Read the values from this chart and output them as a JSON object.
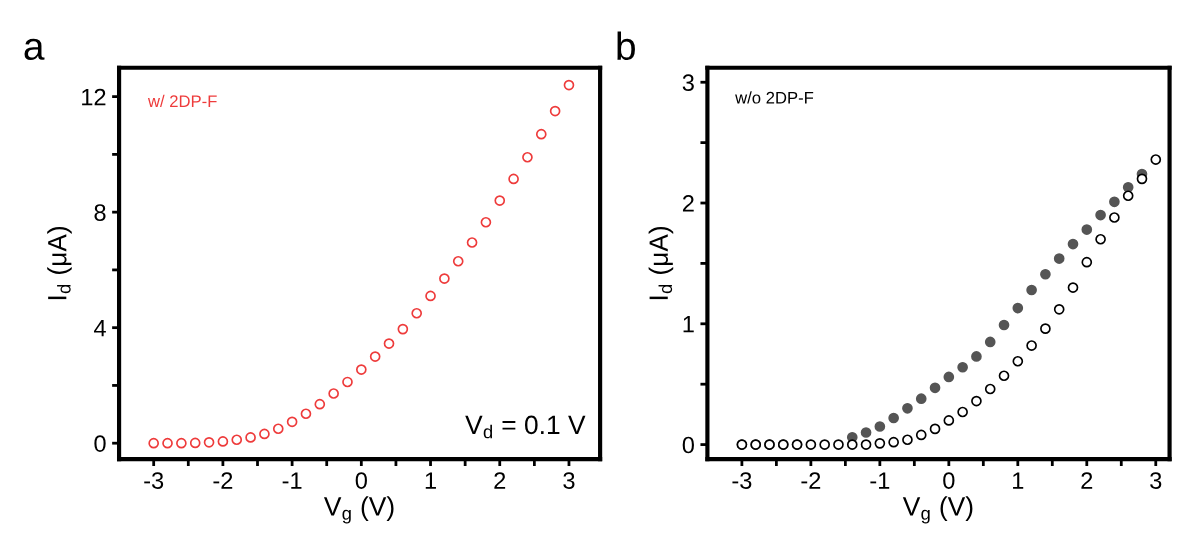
{
  "chart_data": [
    {
      "type": "scatter",
      "xlabel": "V$_{g}$ (V)",
      "ylabel": "I$_{d}$ (μA)",
      "annotations": [
        "a",
        "V$_{d}$ = 0.1 V"
      ],
      "marker": "circle",
      "grid": false,
      "legend": false,
      "xlim": [
        -3.5,
        3.45
      ],
      "ylim": [
        -0.55,
        13.0
      ],
      "xticks": [
        -3,
        {
          "value": -2.5,
          "label": null
        },
        -2,
        {
          "value": -1.5,
          "label": null
        },
        -1,
        {
          "value": -0.5,
          "label": null
        },
        0,
        {
          "value": 0.5,
          "label": null
        },
        1,
        {
          "value": 1.5,
          "label": null
        },
        2,
        {
          "value": 2.5,
          "label": null
        },
        3
      ],
      "yticks": [
        0,
        {
          "value": 2,
          "label": null
        },
        4,
        {
          "value": 6,
          "label": null
        },
        8,
        {
          "value": 10,
          "label": null
        },
        12
      ],
      "series": [
        {
          "name": "w/ 2DP-F",
          "color": "#ee3b3b",
          "x": [
            -3,
            -2.8,
            -2.6,
            -2.4,
            -2.2,
            -2.0,
            -1.8,
            -1.6,
            -1.4,
            -1.2,
            -1.0,
            -0.8,
            -0.6,
            -0.4,
            -0.2,
            0,
            0.2,
            0.4,
            0.6,
            0.8,
            1.0,
            1.2,
            1.4,
            1.6,
            1.8,
            2.0,
            2.2,
            2.4,
            2.6,
            2.8,
            3.0
          ],
          "values": [
            0,
            0,
            0,
            0.01,
            0.03,
            0.06,
            0.12,
            0.2,
            0.32,
            0.5,
            0.74,
            1.02,
            1.35,
            1.72,
            2.12,
            2.55,
            3.0,
            3.45,
            3.95,
            4.5,
            5.1,
            5.7,
            6.3,
            6.95,
            7.65,
            8.4,
            9.15,
            9.9,
            10.7,
            11.5,
            12.4
          ]
        }
      ]
    },
    {
      "type": "scatter",
      "xlabel": "V$_{g}$ (V)",
      "ylabel": "I$_{d}$ (μA)",
      "annotations": [
        "b",
        "w/o 2DP-F"
      ],
      "marker": "circle",
      "grid": false,
      "legend": false,
      "xlim": [
        -3.5,
        3.2
      ],
      "ylim": [
        -0.12,
        3.12
      ],
      "xticks": [
        -3,
        {
          "value": -2.5,
          "label": null
        },
        -2,
        {
          "value": -1.5,
          "label": null
        },
        -1,
        {
          "value": -0.5,
          "label": null
        },
        0,
        {
          "value": 0.5,
          "label": null
        },
        1,
        {
          "value": 1.5,
          "label": null
        },
        2,
        {
          "value": 2.5,
          "label": null
        },
        3
      ],
      "yticks": [
        0,
        {
          "value": 0.5,
          "label": null
        },
        1,
        {
          "value": 1.5,
          "label": null
        },
        2,
        {
          "value": 2.5,
          "label": null
        },
        3
      ],
      "series": [
        {
          "color": "#555555",
          "x": [
            2.8,
            2.6,
            2.4,
            2.2,
            2.0,
            1.8,
            1.6,
            1.4,
            1.2,
            1.0,
            0.8,
            0.6,
            0.4,
            0.2,
            0,
            -0.2,
            -0.4,
            -0.6,
            -0.8,
            -1.0,
            -1.2,
            -1.4,
            -2.2,
            -2.4,
            -2.6,
            -2.8,
            -3.0
          ],
          "values": [
            2.24,
            2.13,
            2.01,
            1.9,
            1.78,
            1.66,
            1.54,
            1.41,
            1.28,
            1.13,
            0.99,
            0.85,
            0.73,
            0.64,
            0.56,
            0.47,
            0.38,
            0.3,
            0.22,
            0.15,
            0.1,
            0.06,
            0,
            0,
            0,
            0,
            0
          ]
        },
        {
          "color": "#000000",
          "x": [
            -3,
            -2.8,
            -2.6,
            -2.4,
            -2.2,
            -2.0,
            -1.8,
            -1.6,
            -1.4,
            -1.2,
            -1.0,
            -0.8,
            -0.6,
            -0.4,
            -0.2,
            0,
            0.2,
            0.4,
            0.6,
            0.8,
            1.0,
            1.2,
            1.4,
            1.6,
            1.8,
            2.0,
            2.2,
            2.4,
            2.6,
            2.8,
            3.0
          ],
          "values": [
            0,
            0,
            0,
            0,
            0,
            0,
            0,
            0,
            0,
            0,
            0.01,
            0.02,
            0.04,
            0.08,
            0.13,
            0.2,
            0.27,
            0.36,
            0.46,
            0.57,
            0.69,
            0.82,
            0.96,
            1.12,
            1.3,
            1.51,
            1.7,
            1.88,
            2.06,
            2.2,
            2.36
          ]
        }
      ]
    }
  ]
}
